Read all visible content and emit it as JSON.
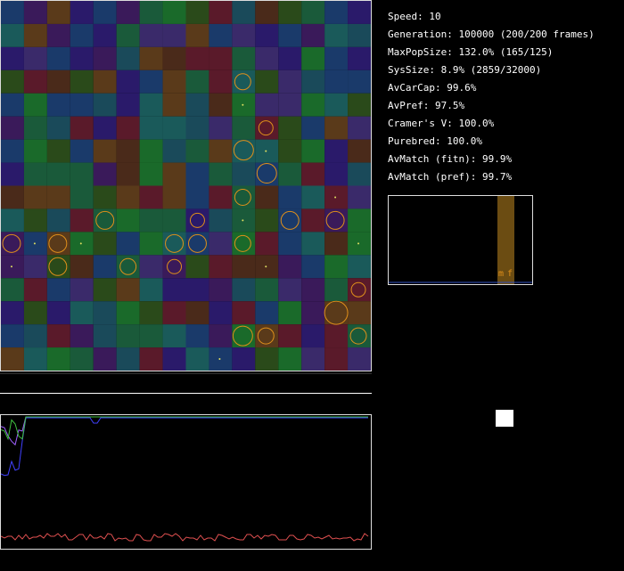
{
  "stats": {
    "speed": "Speed: 10",
    "generation": "Generation: 100000 (200/200 frames)",
    "maxpop": "MaxPopSize: 132.0% (165/125)",
    "syssize": "SysSize: 8.9% (2859/32000)",
    "avcarcap": "AvCarCap: 99.6%",
    "avpref": "AvPref: 97.5%",
    "cramer": "Cramer's V: 100.0%",
    "purebred": "Purebred: 100.0%",
    "avmatch_fitn": "AvMatch (fitn): 99.9%",
    "avmatch_pref": "AvMatch (pref): 99.7%"
  },
  "histogram": {
    "label_m": "m",
    "label_f": "f"
  },
  "colors": {
    "orange": "#e0901a",
    "plot_red": "#e05050",
    "plot_blue": "#4040ff",
    "plot_green": "#40c040"
  }
}
